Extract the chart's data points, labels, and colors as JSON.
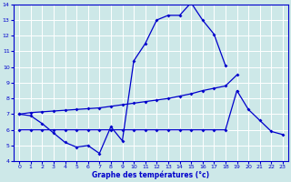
{
  "title": "Graphe des températures (°c)",
  "bg_color": "#cde8e8",
  "grid_color": "#b0d0d0",
  "line_color": "#0000cc",
  "xlim": [
    -0.5,
    23.5
  ],
  "ylim": [
    4,
    14
  ],
  "xticks": [
    0,
    1,
    2,
    3,
    4,
    5,
    6,
    7,
    8,
    9,
    10,
    11,
    12,
    13,
    14,
    15,
    16,
    17,
    18,
    19,
    20,
    21,
    22,
    23
  ],
  "yticks": [
    4,
    5,
    6,
    7,
    8,
    9,
    10,
    11,
    12,
    13,
    14
  ],
  "hours": [
    0,
    1,
    2,
    3,
    4,
    5,
    6,
    7,
    8,
    9,
    10,
    11,
    12,
    13,
    14,
    15,
    16,
    17,
    18,
    19,
    20,
    21,
    22,
    23
  ],
  "temp_max": [
    7.0,
    6.9,
    6.4,
    5.8,
    5.2,
    4.9,
    5.0,
    4.5,
    6.2,
    5.3,
    10.4,
    11.5,
    13.0,
    13.3,
    13.3,
    14.1,
    13.0,
    12.1,
    10.1,
    null,
    null,
    null,
    null,
    null
  ],
  "temp_mean": [
    7.0,
    7.1,
    7.15,
    7.2,
    7.25,
    7.3,
    7.35,
    7.4,
    7.5,
    7.6,
    7.7,
    7.8,
    7.9,
    8.0,
    8.15,
    8.3,
    8.5,
    8.65,
    8.8,
    9.5,
    null,
    null,
    null,
    null
  ],
  "temp_min": [
    6.0,
    6.0,
    6.0,
    6.0,
    6.0,
    6.0,
    6.0,
    6.0,
    6.0,
    6.0,
    6.0,
    6.0,
    6.0,
    6.0,
    6.0,
    6.0,
    6.0,
    6.0,
    6.0,
    8.5,
    7.3,
    6.6,
    5.9,
    5.7
  ]
}
